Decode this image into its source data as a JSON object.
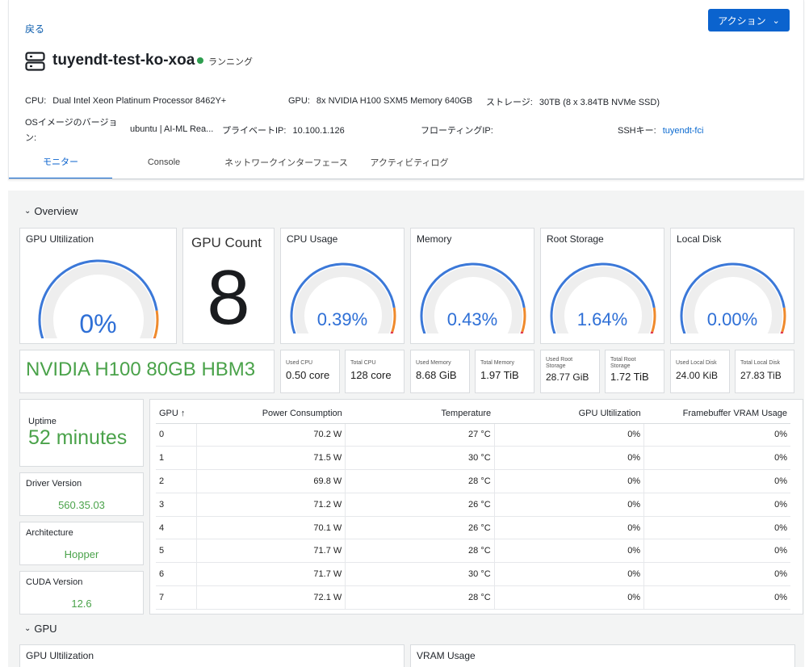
{
  "header": {
    "back_label": "戻る",
    "action_label": "アクション",
    "title": "tuyendt-test-ko-xoa",
    "status": "ランニング",
    "fields": {
      "cpu_label": "CPU:",
      "cpu_value": "Dual Intel Xeon Platinum Processor 8462Y+",
      "gpu_label": "GPU:",
      "gpu_value": "8x NVIDIA H100 SXM5 Memory 640GB",
      "storage_label": "ストレージ:",
      "storage_value": "30TB (8 x 3.84TB NVMe SSD)",
      "os_label_1": "OSイメージのバージョ",
      "os_label_2": "ン:",
      "os_value": "ubuntu | AI-ML Rea...",
      "private_ip_label": "プライベートIP:",
      "private_ip_value": "10.100.1.126",
      "floating_ip_label": "フローティングIP:",
      "ssh_label": "SSHキー:",
      "ssh_value": "tuyendt-fci"
    },
    "tabs": [
      "モニター",
      "Console",
      "ネットワークインターフェース",
      "アクティビティログ"
    ]
  },
  "overview": {
    "section_label": "Overview",
    "gpu_util_title": "GPU Ultilization",
    "gpu_util_value": "0%",
    "gpu_count_title": "GPU Count",
    "gpu_count_value": "8",
    "gauges": [
      {
        "title": "CPU Usage",
        "value": "0.39%",
        "percent": 0.39
      },
      {
        "title": "Memory",
        "value": "0.43%",
        "percent": 0.43
      },
      {
        "title": "Root Storage",
        "value": "1.64%",
        "percent": 1.64
      },
      {
        "title": "Local Disk",
        "value": "0.00%",
        "percent": 0.0
      }
    ],
    "gpu_util_percent": 0,
    "gpu_model": "NVIDIA H100 80GB HBM3",
    "stats": [
      {
        "label": "Used CPU",
        "value": "0.50 core"
      },
      {
        "label": "Total CPU",
        "value": "128 core"
      },
      {
        "label": "Used Memory",
        "value": "8.68 GiB"
      },
      {
        "label": "Total Memory",
        "value": "1.97 TiB"
      },
      {
        "label": "Used Root Storage",
        "value": "28.77 GiB"
      },
      {
        "label": "Total Root Storage",
        "value": "1.72 TiB"
      },
      {
        "label": "Used Local Disk",
        "value": "24.00 KiB"
      },
      {
        "label": "Total Local Disk",
        "value": "27.83 TiB"
      }
    ],
    "uptime_label": "Uptime",
    "uptime_value": "52 minutes",
    "driver_label": "Driver Version",
    "driver_value": "560.35.03",
    "arch_label": "Architecture",
    "arch_value": "Hopper",
    "cuda_label": "CUDA Version",
    "cuda_value": "12.6"
  },
  "table": {
    "headers": [
      "GPU",
      "Power Consumption",
      "Temperature",
      "GPU Ultilization",
      "Framebuffer VRAM Usage"
    ],
    "rows": [
      [
        "0",
        "70.2 W",
        "27 °C",
        "0%",
        "0%"
      ],
      [
        "1",
        "71.5 W",
        "30 °C",
        "0%",
        "0%"
      ],
      [
        "2",
        "69.8 W",
        "28 °C",
        "0%",
        "0%"
      ],
      [
        "3",
        "71.2 W",
        "26 °C",
        "0%",
        "0%"
      ],
      [
        "4",
        "70.1 W",
        "26 °C",
        "0%",
        "0%"
      ],
      [
        "5",
        "71.7 W",
        "28 °C",
        "0%",
        "0%"
      ],
      [
        "6",
        "71.7 W",
        "30 °C",
        "0%",
        "0%"
      ],
      [
        "7",
        "72.1 W",
        "28 °C",
        "0%",
        "0%"
      ]
    ]
  },
  "gpu_section": {
    "section_label": "GPU",
    "panel1_title": "GPU Ultilization",
    "panel2_title": "VRAM Usage"
  },
  "colors": {
    "accent": "#0b63ce",
    "green": "#4aa24a",
    "gauge_blue": "#2e6fd6"
  }
}
